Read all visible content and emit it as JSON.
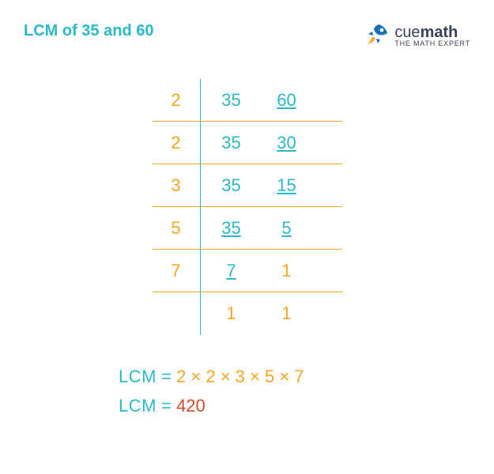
{
  "title": "LCM of 35 and 60",
  "brand": {
    "name_part1": "cue",
    "name_part2": "math",
    "tagline": "THE MATH EXPERT"
  },
  "colors": {
    "title": "#2bb8c9",
    "divisor": "#f5a623",
    "value_active": "#2bb8c9",
    "value_done": "#f5a623",
    "row_border": "#f5a623",
    "vline": "#2bb8c9",
    "lcm_label": "#2bb8c9",
    "lcm_expr": "#f5a623",
    "lcm_result": "#d04a2f",
    "brand": "#3a3f5c",
    "rocket_body": "#1b6fb5",
    "rocket_flame": "#f5a623"
  },
  "table": {
    "rows": [
      {
        "divisor": "2",
        "a": "35",
        "a_u": false,
        "b": "60",
        "b_u": true
      },
      {
        "divisor": "2",
        "a": "35",
        "a_u": false,
        "b": "30",
        "b_u": true
      },
      {
        "divisor": "3",
        "a": "35",
        "a_u": false,
        "b": "15",
        "b_u": true
      },
      {
        "divisor": "5",
        "a": "35",
        "a_u": true,
        "b": "5",
        "b_u": true
      },
      {
        "divisor": "7",
        "a": "7",
        "a_u": true,
        "b": "1",
        "b_u": false
      },
      {
        "divisor": "",
        "a": "1",
        "a_u": false,
        "b": "1",
        "b_u": false
      }
    ]
  },
  "result": {
    "label": "LCM",
    "eq": "=",
    "expression": "2 × 2 × 3 × 5 × 7",
    "value": "420"
  }
}
